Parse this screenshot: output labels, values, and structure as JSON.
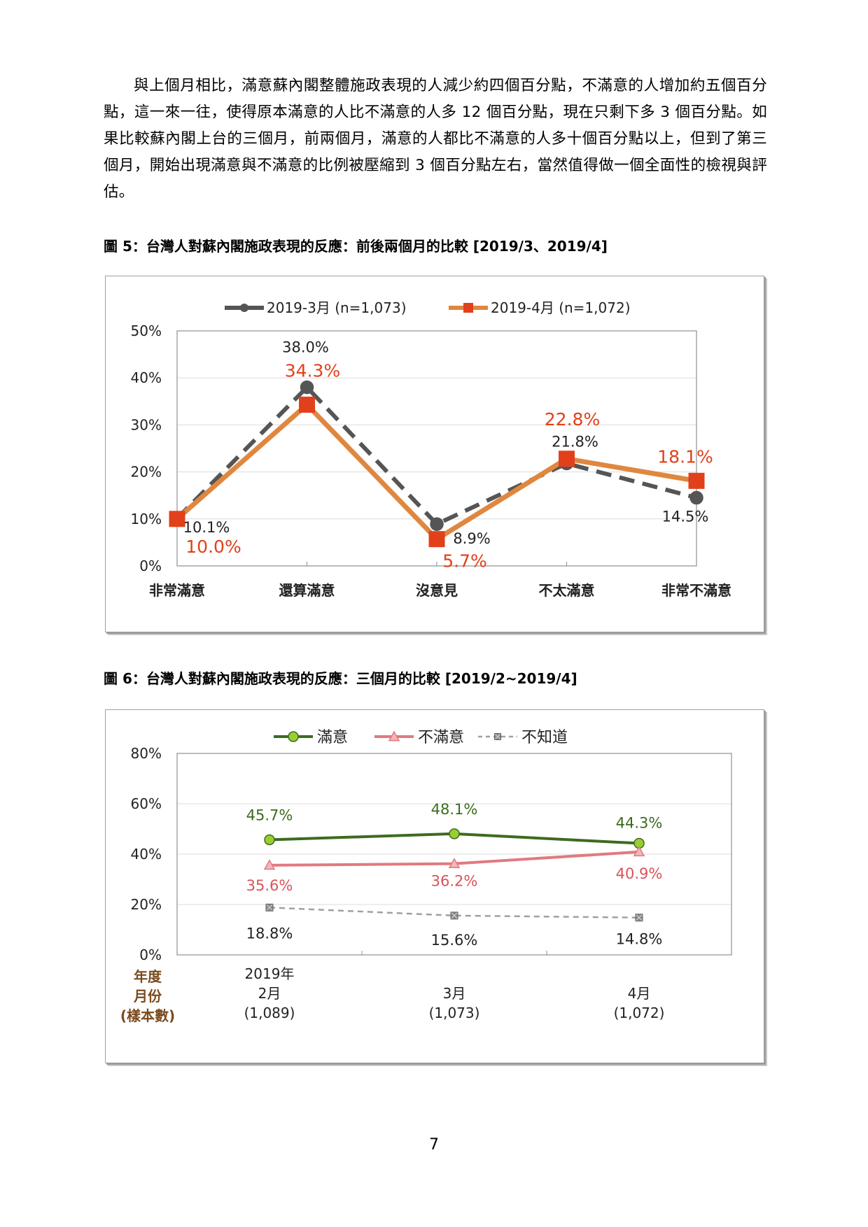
{
  "paragraph": "與上個月相比，滿意蘇內閣整體施政表現的人減少約四個百分點，不滿意的人增加約五個百分點，這一來一往，使得原本滿意的人比不滿意的人多 12 個百分點，現在只剩下多 3 個百分點。如果比較蘇內閣上台的三個月，前兩個月，滿意的人都比不滿意的人多十個百分點以上，但到了第三個月，開始出現滿意與不滿意的比例被壓縮到 3 個百分點左右，當然值得做一個全面性的檢視與評估。",
  "figure5_caption": "圖 5：台灣人對蘇內閣施政表現的反應：前後兩個月的比較  [2019/3、2019/4]",
  "figure6_caption": "圖 6：台灣人對蘇內閣施政表現的反應：三個月的比較  [2019/2~2019/4]",
  "page_number": "7",
  "chart_data": [
    {
      "type": "line",
      "categories": [
        "非常滿意",
        "還算滿意",
        "沒意見",
        "不太滿意",
        "非常不滿意"
      ],
      "series": [
        {
          "name": "2019-3月 (n=1,073)",
          "values": [
            10.1,
            38.0,
            8.9,
            21.8,
            14.5
          ],
          "labels": [
            "10.1%",
            "38.0%",
            "8.9%",
            "21.8%",
            "14.5%"
          ],
          "color": "#555555",
          "dash": true,
          "marker": "circle"
        },
        {
          "name": "2019-4月 (n=1,072)",
          "values": [
            10.0,
            34.3,
            5.7,
            22.8,
            18.1
          ],
          "labels": [
            "10.0%",
            "34.3%",
            "5.7%",
            "22.8%",
            "18.1%"
          ],
          "color": "#E0873F",
          "label_color": "#E2401A",
          "marker_color": "#E2401A",
          "marker": "square"
        }
      ],
      "ylim": [
        0,
        50
      ],
      "yticks": [
        "0%",
        "10%",
        "20%",
        "30%",
        "40%",
        "50%"
      ],
      "grid": true,
      "legend": "top"
    },
    {
      "type": "line",
      "x_labels": [
        [
          "2019年",
          "2月",
          "(1,089)"
        ],
        [
          "3月",
          "(1,073)"
        ],
        [
          "4月",
          "(1,072)"
        ]
      ],
      "x_axis_title": [
        "年度",
        "月份",
        "(樣本數)"
      ],
      "series": [
        {
          "name": "滿意",
          "values": [
            45.7,
            48.1,
            44.3
          ],
          "labels": [
            "45.7%",
            "48.1%",
            "44.3%"
          ],
          "color": "#3D6B1F",
          "label_color": "#3D6B1F",
          "marker_color": "#9ACD32",
          "marker": "circle"
        },
        {
          "name": "不滿意",
          "values": [
            35.6,
            36.2,
            40.9
          ],
          "labels": [
            "35.6%",
            "36.2%",
            "40.9%"
          ],
          "color": "#E07A80",
          "label_color": "#D9535B",
          "marker_color": "#F5B5B8",
          "marker": "triangle"
        },
        {
          "name": "不知道",
          "values": [
            18.8,
            15.6,
            14.8
          ],
          "labels": [
            "18.8%",
            "15.6%",
            "14.8%"
          ],
          "color": "#A0A0A0",
          "label_color": "#222222",
          "marker_color": "#888888",
          "marker": "xsquare",
          "dash": true
        }
      ],
      "ylim": [
        0,
        80
      ],
      "yticks": [
        "0%",
        "20%",
        "40%",
        "60%",
        "80%"
      ],
      "grid": true,
      "legend": "top"
    }
  ]
}
